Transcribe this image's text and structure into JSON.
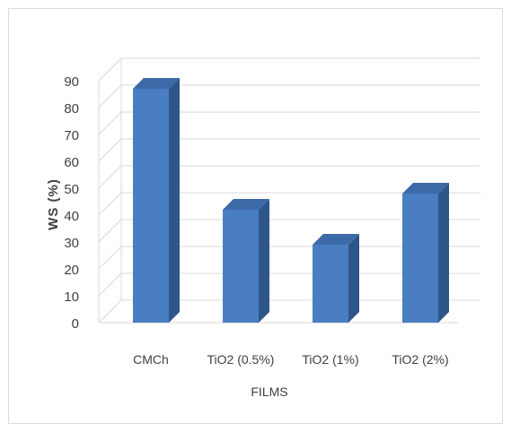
{
  "chart_data": {
    "type": "bar",
    "style": "3d-column",
    "categories": [
      "CMCh",
      "TiO2 (0.5%)",
      "TiO2 (1%)",
      "TiO2 (2%)"
    ],
    "values": [
      87,
      42,
      29,
      48
    ],
    "title": "",
    "xlabel": "FILMS",
    "ylabel": "WS (%)",
    "ylim": [
      0,
      90
    ],
    "yticks": [
      0,
      10,
      20,
      30,
      40,
      50,
      60,
      70,
      80,
      90
    ],
    "grid": true,
    "legend": "none",
    "colors": {
      "bar_front": "#4a7ec3",
      "bar_side": "#2f5689",
      "bar_top": "#3d6aa8",
      "gridline": "#d9d9d9"
    }
  }
}
